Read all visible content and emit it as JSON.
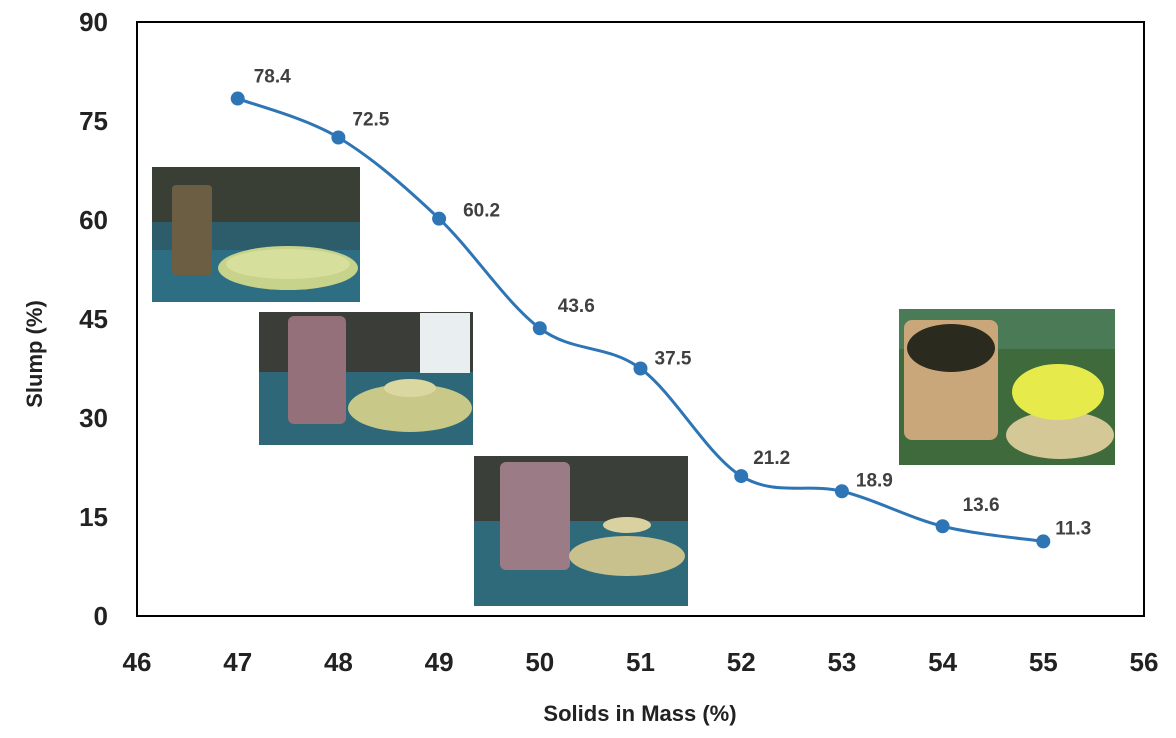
{
  "chart_data": {
    "type": "line",
    "title": "",
    "xlabel": "Solids in Mass (%)",
    "ylabel": "Slump (%)",
    "xlim": [
      46,
      56
    ],
    "ylim": [
      0,
      90
    ],
    "x_ticks": [
      "46",
      "47",
      "48",
      "49",
      "50",
      "51",
      "52",
      "53",
      "54",
      "55",
      "56"
    ],
    "y_ticks": [
      "0",
      "15",
      "30",
      "45",
      "60",
      "75",
      "90"
    ],
    "grid": false,
    "smooth": true,
    "series": [
      {
        "name": "Slump",
        "color": "#2E75B6",
        "x": [
          47,
          48,
          49,
          50,
          51,
          52,
          53,
          54,
          55
        ],
        "values": [
          78.4,
          72.5,
          60.2,
          43.6,
          37.5,
          21.2,
          18.9,
          13.6,
          11.3
        ],
        "labels": [
          "78.4",
          "72.5",
          "60.2",
          "43.6",
          "37.5",
          "21.2",
          "18.9",
          "13.6",
          "11.3"
        ]
      }
    ],
    "inset_photos": [
      {
        "x": 47.5,
        "depicts": "slump-cone-wide-spread"
      },
      {
        "x": 48.5,
        "depicts": "slump-cone-medium-spread"
      },
      {
        "x": 50.3,
        "depicts": "slump-cone-small-spread"
      },
      {
        "x": 54.0,
        "depicts": "slump-cone-minimal-spread"
      }
    ]
  }
}
